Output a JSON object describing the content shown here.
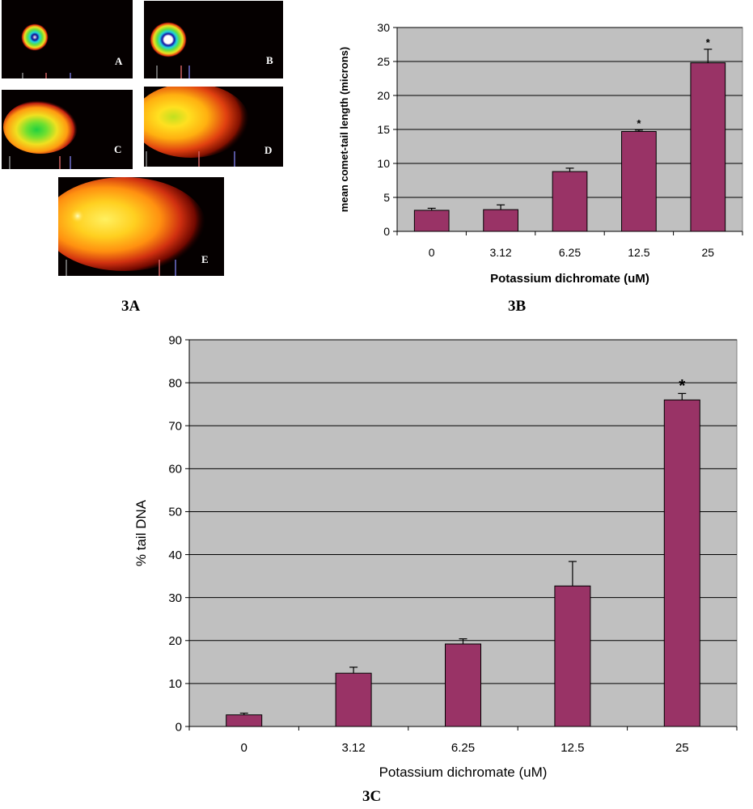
{
  "panels": {
    "a_label": "3A",
    "b_label": "3B",
    "c_label": "3C"
  },
  "comet_images": [
    {
      "letter": "A",
      "description": "comet-image"
    },
    {
      "letter": "B",
      "description": "comet-image"
    },
    {
      "letter": "C",
      "description": "comet-image"
    },
    {
      "letter": "D",
      "description": "comet-image"
    },
    {
      "letter": "E",
      "description": "comet-image"
    }
  ],
  "colors": {
    "bar": "#993366",
    "plot_background": "#c0c0c0",
    "axis": "#000000"
  },
  "chart_data": [
    {
      "id": "3B",
      "type": "bar",
      "categories": [
        "0",
        "3.12",
        "6.25",
        "12.5",
        "25"
      ],
      "values": [
        3.1,
        3.2,
        8.8,
        14.7,
        24.8
      ],
      "errors": [
        0.3,
        0.7,
        0.5,
        0.2,
        2.0
      ],
      "significance": [
        "",
        "",
        "",
        "*",
        "*"
      ],
      "xlabel": "Potassium dichromate (uM)",
      "ylabel": "mean comet-tail length (microns)",
      "ylim": [
        0,
        30
      ],
      "yticks": [
        0,
        5,
        10,
        15,
        20,
        25,
        30
      ],
      "grid": true,
      "legend": "none"
    },
    {
      "id": "3C",
      "type": "bar",
      "categories": [
        "0",
        "3.12",
        "6.25",
        "12.5",
        "25"
      ],
      "values": [
        2.7,
        12.4,
        19.2,
        32.7,
        76.0
      ],
      "errors": [
        0.4,
        1.4,
        1.2,
        5.7,
        1.5
      ],
      "significance": [
        "",
        "",
        "",
        "",
        "*"
      ],
      "xlabel": "Potassium dichromate (uM)",
      "ylabel": "% tail DNA",
      "ylim": [
        0,
        90
      ],
      "yticks": [
        0,
        10,
        20,
        30,
        40,
        50,
        60,
        70,
        80,
        90
      ],
      "grid": true,
      "legend": "none"
    }
  ]
}
